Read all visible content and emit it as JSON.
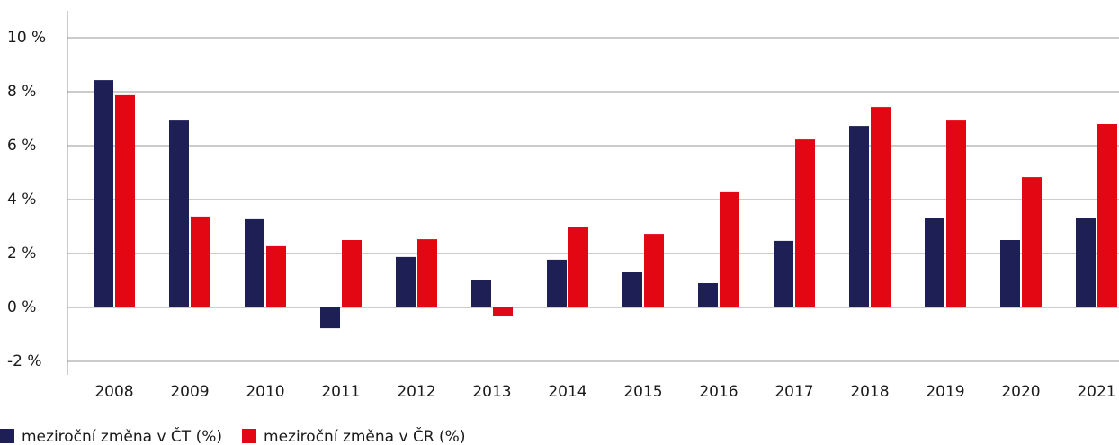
{
  "chart_data": {
    "type": "bar",
    "categories": [
      "2008",
      "2009",
      "2010",
      "2011",
      "2012",
      "2013",
      "2014",
      "2015",
      "2016",
      "2017",
      "2018",
      "2019",
      "2020",
      "2021"
    ],
    "series": [
      {
        "name": "meziroční změna v ČT (%)",
        "color": "#1e1f55",
        "values": [
          8.43,
          6.93,
          3.27,
          -0.77,
          1.87,
          1.03,
          1.77,
          1.3,
          0.9,
          2.47,
          6.73,
          3.3,
          2.5,
          3.3
        ]
      },
      {
        "name": "meziroční změna v ČR (%)",
        "color": "#e30613",
        "values": [
          7.87,
          3.37,
          2.27,
          2.5,
          2.53,
          -0.3,
          2.97,
          2.73,
          4.27,
          6.23,
          7.43,
          6.93,
          4.83,
          6.8
        ]
      }
    ],
    "ylim": [
      -2.5,
      11
    ],
    "yticks": [
      {
        "value": -2,
        "label": "-2 %"
      },
      {
        "value": 0,
        "label": "0 %"
      },
      {
        "value": 2,
        "label": "2 %"
      },
      {
        "value": 4,
        "label": "4 %"
      },
      {
        "value": 6,
        "label": "6 %"
      },
      {
        "value": 8,
        "label": "8 %"
      },
      {
        "value": 10,
        "label": "10 %"
      }
    ],
    "grid": true
  }
}
